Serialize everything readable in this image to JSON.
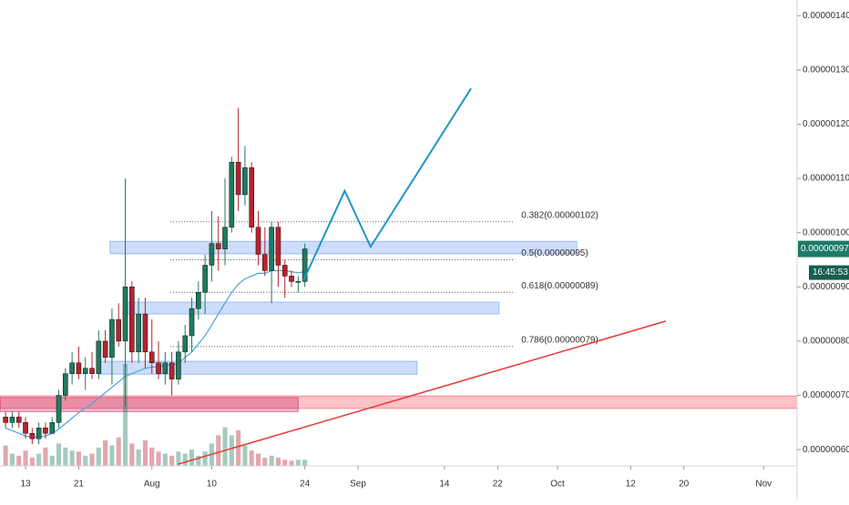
{
  "chart_data": {
    "type": "candlestick",
    "x": [
      -3,
      -2,
      -1,
      0,
      1,
      2,
      3,
      4,
      5,
      6,
      7,
      8,
      9,
      10,
      11,
      12,
      13,
      14,
      15,
      16,
      17,
      18,
      19,
      20,
      21,
      22,
      23,
      24,
      25,
      26,
      27,
      28,
      29,
      30,
      31,
      32,
      33,
      34,
      35,
      36,
      37,
      38,
      39,
      40,
      41,
      42
    ],
    "open": [
      6.6e-07,
      6.5e-07,
      6.6e-07,
      6.5e-07,
      6.3e-07,
      6.2e-07,
      6.4e-07,
      6.3e-07,
      6.5e-07,
      7e-07,
      7.4e-07,
      7.6e-07,
      7.4e-07,
      7.5e-07,
      7.4e-07,
      8e-07,
      7.7e-07,
      8.4e-07,
      8e-07,
      9e-07,
      7.8e-07,
      8.5e-07,
      7.8e-07,
      7.6e-07,
      7.4e-07,
      7.6e-07,
      7.3e-07,
      7.8e-07,
      8.1e-07,
      8.6e-07,
      8.9e-07,
      9.4e-07,
      9.8e-07,
      9.7e-07,
      1.01e-06,
      1.13e-06,
      1.07e-06,
      1.12e-06,
      1.01e-06,
      9.6e-07,
      9.3e-07,
      1.01e-06,
      9.4e-07,
      9.2e-07,
      9.1e-07,
      9.1e-07
    ],
    "high": [
      6.7e-07,
      6.7e-07,
      6.7e-07,
      6.6e-07,
      6.4e-07,
      6.5e-07,
      6.5e-07,
      6.6e-07,
      7.1e-07,
      7.5e-07,
      7.8e-07,
      7.9e-07,
      7.7e-07,
      7.8e-07,
      8.2e-07,
      8.2e-07,
      8.6e-07,
      8.7e-07,
      1.1e-06,
      9.1e-07,
      8.8e-07,
      8.8e-07,
      8.4e-07,
      8e-07,
      7.8e-07,
      7.8e-07,
      8e-07,
      8.3e-07,
      8.8e-07,
      9.1e-07,
      9.6e-07,
      1.04e-06,
      1.03e-06,
      1.1e-06,
      1.14e-06,
      1.23e-06,
      1.16e-06,
      1.13e-06,
      1.04e-06,
      1.01e-06,
      1.02e-06,
      1.02e-06,
      9.5e-07,
      9.3e-07,
      9.2e-07,
      9.8e-07
    ],
    "low": [
      6.4e-07,
      6.4e-07,
      6.4e-07,
      6.2e-07,
      6.1e-07,
      6.1e-07,
      6.2e-07,
      6.3e-07,
      6.4e-07,
      6.9e-07,
      7.2e-07,
      7.3e-07,
      7.1e-07,
      7.3e-07,
      7.3e-07,
      7.6e-07,
      7.2e-07,
      7.9e-07,
      6.8e-07,
      7.6e-07,
      7.6e-07,
      7.5e-07,
      7.4e-07,
      7.3e-07,
      7.2e-07,
      7e-07,
      7.2e-07,
      7.6e-07,
      7.8e-07,
      8.4e-07,
      8.5e-07,
      9.1e-07,
      9.3e-07,
      9.4e-07,
      1e-06,
      1.04e-06,
      1.05e-06,
      1e-06,
      9.4e-07,
      9.2e-07,
      8.7e-07,
      9e-07,
      8.8e-07,
      9e-07,
      8.9e-07,
      9e-07
    ],
    "close": [
      6.5e-07,
      6.6e-07,
      6.5e-07,
      6.3e-07,
      6.2e-07,
      6.4e-07,
      6.3e-07,
      6.5e-07,
      7e-07,
      7.4e-07,
      7.6e-07,
      7.4e-07,
      7.5e-07,
      7.4e-07,
      8e-07,
      7.7e-07,
      8.4e-07,
      8e-07,
      9e-07,
      7.8e-07,
      8.5e-07,
      7.8e-07,
      7.6e-07,
      7.4e-07,
      7.6e-07,
      7.3e-07,
      7.8e-07,
      8.1e-07,
      8.6e-07,
      8.9e-07,
      9.4e-07,
      9.8e-07,
      9.7e-07,
      1.01e-06,
      1.13e-06,
      1.07e-06,
      1.12e-06,
      1.01e-06,
      9.6e-07,
      9.3e-07,
      1.01e-06,
      9.4e-07,
      9.2e-07,
      9.1e-07,
      9.1e-07,
      9.7e-07
    ],
    "volume": [
      20,
      12,
      10,
      15,
      8,
      12,
      18,
      10,
      22,
      18,
      15,
      14,
      10,
      12,
      18,
      25,
      20,
      28,
      100,
      22,
      16,
      25,
      18,
      14,
      12,
      10,
      14,
      12,
      16,
      10,
      14,
      22,
      30,
      38,
      30,
      35,
      20,
      15,
      12,
      8,
      10,
      8,
      6,
      5,
      6,
      6
    ],
    "vlim": [
      0,
      125
    ],
    "moving_average": [
      6.4e-07,
      6.35e-07,
      6.3e-07,
      6.25e-07,
      6.23e-07,
      6.23e-07,
      6.25e-07,
      6.3e-07,
      6.38e-07,
      6.48e-07,
      6.58e-07,
      6.68e-07,
      6.77e-07,
      6.85e-07,
      6.95e-07,
      7.05e-07,
      7.15e-07,
      7.25e-07,
      7.35e-07,
      7.4e-07,
      7.45e-07,
      7.5e-07,
      7.52e-07,
      7.53e-07,
      7.55e-07,
      7.56e-07,
      7.6e-07,
      7.7e-07,
      7.8e-07,
      7.95e-07,
      8.1e-07,
      8.3e-07,
      8.5e-07,
      8.7e-07,
      8.9e-07,
      9.05e-07,
      9.15e-07,
      9.2e-07,
      9.25e-07,
      9.25e-07,
      9.3e-07,
      9.3e-07,
      9.3e-07,
      9.28e-07,
      9.26e-07,
      9.28e-07
    ],
    "up_color": "#1e7a5e",
    "down_color": "#b5232f",
    "ma_color": "#4aa3d8",
    "xlim": [
      -3.84,
      116.03
    ],
    "ylim": [
      5.7e-07,
      1.429e-06
    ],
    "xticks": [
      {
        "value": 0,
        "label": "13"
      },
      {
        "value": 8,
        "label": "21"
      },
      {
        "value": 19,
        "label": "Aug"
      },
      {
        "value": 28,
        "label": "10"
      },
      {
        "value": 42,
        "label": "24"
      },
      {
        "value": 50,
        "label": "Sep"
      },
      {
        "value": 63,
        "label": "14"
      },
      {
        "value": 71,
        "label": "22"
      },
      {
        "value": 80,
        "label": "Oct"
      },
      {
        "value": 91,
        "label": "12"
      },
      {
        "value": 99,
        "label": "20"
      },
      {
        "value": 111,
        "label": "Nov"
      }
    ],
    "yticks": [
      {
        "value": 6e-07,
        "label": "0.00000060"
      },
      {
        "value": 7e-07,
        "label": "0.00000070"
      },
      {
        "value": 8e-07,
        "label": "0.00000080"
      },
      {
        "value": 9e-07,
        "label": "0.00000090"
      },
      {
        "value": 1e-06,
        "label": "0.00000100"
      },
      {
        "value": 1.1e-06,
        "label": "0.00000110"
      },
      {
        "value": 1.2e-06,
        "label": "0.00000120"
      },
      {
        "value": 1.3e-06,
        "label": "0.00000130"
      },
      {
        "value": 1.4e-06,
        "label": "0.00000140"
      }
    ],
    "zones": [
      {
        "x": [
          12.7,
          82.9
        ],
        "y": [
          9.61e-07,
          9.84e-07
        ],
        "color": "#5b8def"
      },
      {
        "x": [
          15.1,
          71.2
        ],
        "y": [
          8.5e-07,
          8.72e-07
        ],
        "color": "#5b8def"
      },
      {
        "x": [
          11.2,
          58.9
        ],
        "y": [
          7.39e-07,
          7.63e-07
        ],
        "color": "#5b8def"
      },
      {
        "x": [
          -3.84,
          116.03
        ],
        "y": [
          6.76e-07,
          6.99e-07
        ],
        "color": "#f23645"
      },
      {
        "x": [
          -3.84,
          41
        ],
        "y": [
          6.7e-07,
          6.96e-07
        ],
        "color": "#c2185b"
      }
    ],
    "fib_x": [
      21.8,
      73.6
    ],
    "fib_levels": [
      {
        "label": "0.382(0.00000102)",
        "value": 1.02e-06
      },
      {
        "label": "0.5(0.00000095)",
        "value": 9.5e-07
      },
      {
        "label": "0.618(0.00000089)",
        "value": 8.9e-07
      },
      {
        "label": "0.786(0.00000079)",
        "value": 7.9e-07
      }
    ],
    "projection": {
      "x": [
        41.8,
        48.0,
        51.9,
        67.0
      ],
      "y": [
        9.12e-07,
        1.077e-06,
        9.74e-07,
        1.266e-06
      ],
      "color": "#2196c4"
    },
    "trendline": {
      "x": [
        22.9,
        96.3
      ],
      "y": [
        5.73e-07,
        8.37e-07
      ],
      "color": "#e53935"
    },
    "last_price": {
      "label": "0.00000097",
      "value": 9.7e-07
    },
    "countdown": "16:45:53"
  }
}
